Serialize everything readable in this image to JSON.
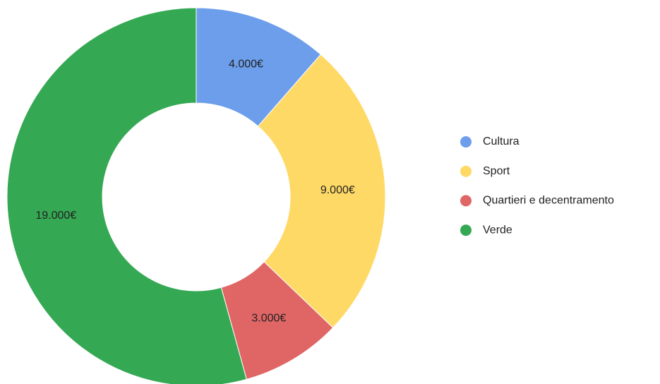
{
  "chart_data": {
    "type": "donut",
    "categories": [
      "Cultura",
      "Sport",
      "Quartieri e decentramento",
      "Verde"
    ],
    "values": [
      4000,
      9000,
      3000,
      19000
    ],
    "value_labels": [
      "4.000€",
      "9.000€",
      "3.000€",
      "19.000€"
    ],
    "colors": [
      "#6d9eeb",
      "#ffd966",
      "#e06666",
      "#34a853"
    ],
    "legend": "right"
  }
}
